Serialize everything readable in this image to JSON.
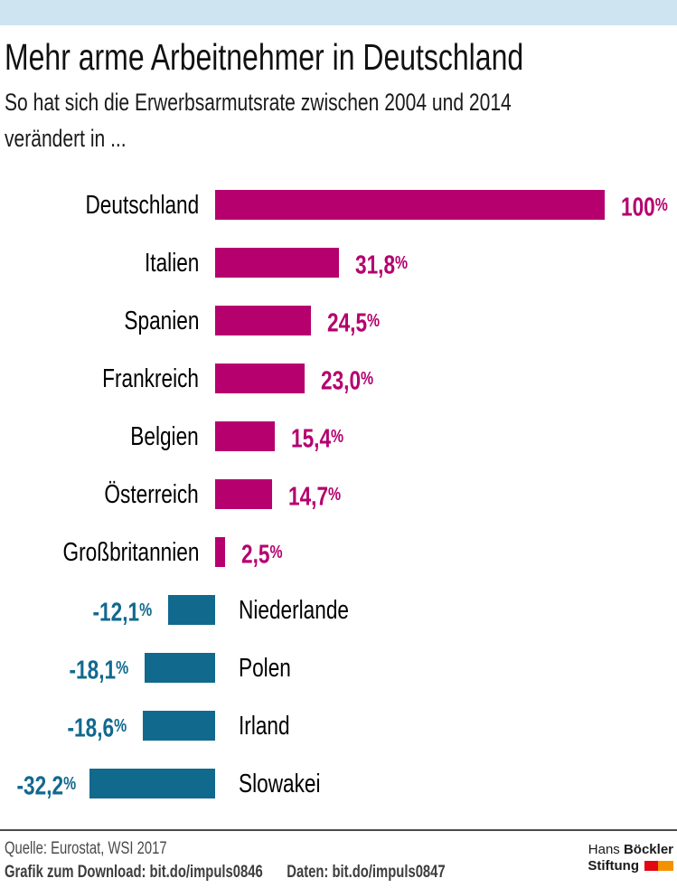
{
  "chart_data": {
    "type": "bar",
    "orientation": "horizontal",
    "title": "Mehr arme Arbeitnehmer in Deutschland",
    "subtitle_line1": "So hat sich die Erwerbsarmutsrate zwischen 2004 und 2014",
    "subtitle_line2": "verändert in ...",
    "unit": "%",
    "categories": [
      "Deutschland",
      "Italien",
      "Spanien",
      "Frankreich",
      "Belgien",
      "Österreich",
      "Großbritannien",
      "Niederlande",
      "Polen",
      "Irland",
      "Slowakei"
    ],
    "values": [
      100,
      31.8,
      24.5,
      23.0,
      15.4,
      14.7,
      2.5,
      -12.1,
      -18.1,
      -18.6,
      -32.2
    ],
    "value_labels": [
      "100%",
      "31,8%",
      "24,5%",
      "23,0%",
      "15,4%",
      "14,7%",
      "2,5%",
      "-12,1%",
      "-18,1%",
      "-18,6%",
      "-32,2%"
    ],
    "xlim": [
      -40,
      100
    ],
    "grid": false,
    "legend": "none",
    "positive_color": "#b5006e",
    "negative_color": "#11698e"
  },
  "footer": {
    "source": "Quelle: Eurostat, WSI 2017",
    "download": "Grafik zum Download: bit.do/impuls0846",
    "data_link": "Daten: bit.do/impuls0847",
    "logo": {
      "line1_regular": "Hans ",
      "line1_bold": "Böckler",
      "line2_bold": "Stiftung",
      "block_red": "#e30613",
      "block_orange": "#f39200"
    }
  },
  "theme": {
    "top_bar_color": "#cfe4f1",
    "rule_color": "#4a4a4a",
    "text_color": "#000000"
  }
}
